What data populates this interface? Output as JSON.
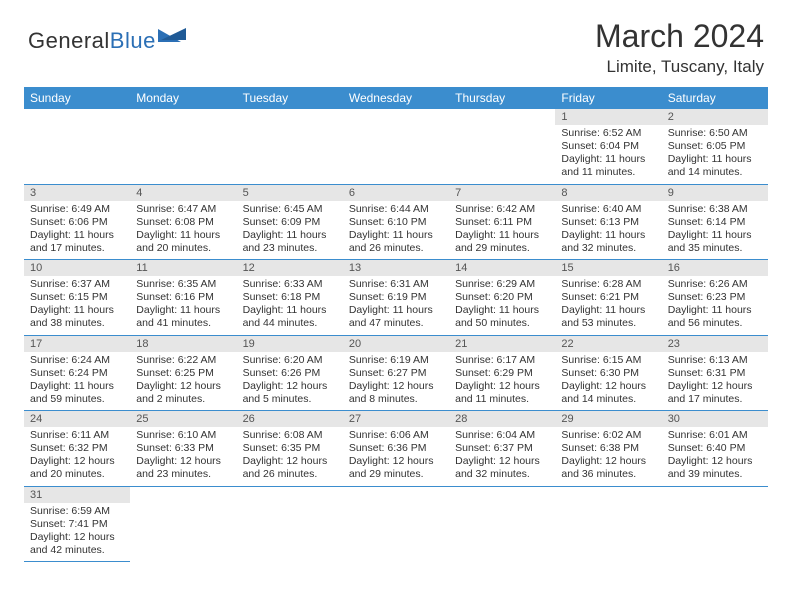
{
  "brand": {
    "part1": "General",
    "part2": "Blue"
  },
  "title": "March 2024",
  "location": "Limite, Tuscany, Italy",
  "header_bg": "#3b8dce",
  "daynum_bg": "#e6e6e6",
  "border_color": "#3b8dce",
  "week_days": [
    "Sunday",
    "Monday",
    "Tuesday",
    "Wednesday",
    "Thursday",
    "Friday",
    "Saturday"
  ],
  "weeks": [
    [
      null,
      null,
      null,
      null,
      null,
      {
        "n": "1",
        "sr": "Sunrise: 6:52 AM",
        "ss": "Sunset: 6:04 PM",
        "dl": "Daylight: 11 hours and 11 minutes."
      },
      {
        "n": "2",
        "sr": "Sunrise: 6:50 AM",
        "ss": "Sunset: 6:05 PM",
        "dl": "Daylight: 11 hours and 14 minutes."
      }
    ],
    [
      {
        "n": "3",
        "sr": "Sunrise: 6:49 AM",
        "ss": "Sunset: 6:06 PM",
        "dl": "Daylight: 11 hours and 17 minutes."
      },
      {
        "n": "4",
        "sr": "Sunrise: 6:47 AM",
        "ss": "Sunset: 6:08 PM",
        "dl": "Daylight: 11 hours and 20 minutes."
      },
      {
        "n": "5",
        "sr": "Sunrise: 6:45 AM",
        "ss": "Sunset: 6:09 PM",
        "dl": "Daylight: 11 hours and 23 minutes."
      },
      {
        "n": "6",
        "sr": "Sunrise: 6:44 AM",
        "ss": "Sunset: 6:10 PM",
        "dl": "Daylight: 11 hours and 26 minutes."
      },
      {
        "n": "7",
        "sr": "Sunrise: 6:42 AM",
        "ss": "Sunset: 6:11 PM",
        "dl": "Daylight: 11 hours and 29 minutes."
      },
      {
        "n": "8",
        "sr": "Sunrise: 6:40 AM",
        "ss": "Sunset: 6:13 PM",
        "dl": "Daylight: 11 hours and 32 minutes."
      },
      {
        "n": "9",
        "sr": "Sunrise: 6:38 AM",
        "ss": "Sunset: 6:14 PM",
        "dl": "Daylight: 11 hours and 35 minutes."
      }
    ],
    [
      {
        "n": "10",
        "sr": "Sunrise: 6:37 AM",
        "ss": "Sunset: 6:15 PM",
        "dl": "Daylight: 11 hours and 38 minutes."
      },
      {
        "n": "11",
        "sr": "Sunrise: 6:35 AM",
        "ss": "Sunset: 6:16 PM",
        "dl": "Daylight: 11 hours and 41 minutes."
      },
      {
        "n": "12",
        "sr": "Sunrise: 6:33 AM",
        "ss": "Sunset: 6:18 PM",
        "dl": "Daylight: 11 hours and 44 minutes."
      },
      {
        "n": "13",
        "sr": "Sunrise: 6:31 AM",
        "ss": "Sunset: 6:19 PM",
        "dl": "Daylight: 11 hours and 47 minutes."
      },
      {
        "n": "14",
        "sr": "Sunrise: 6:29 AM",
        "ss": "Sunset: 6:20 PM",
        "dl": "Daylight: 11 hours and 50 minutes."
      },
      {
        "n": "15",
        "sr": "Sunrise: 6:28 AM",
        "ss": "Sunset: 6:21 PM",
        "dl": "Daylight: 11 hours and 53 minutes."
      },
      {
        "n": "16",
        "sr": "Sunrise: 6:26 AM",
        "ss": "Sunset: 6:23 PM",
        "dl": "Daylight: 11 hours and 56 minutes."
      }
    ],
    [
      {
        "n": "17",
        "sr": "Sunrise: 6:24 AM",
        "ss": "Sunset: 6:24 PM",
        "dl": "Daylight: 11 hours and 59 minutes."
      },
      {
        "n": "18",
        "sr": "Sunrise: 6:22 AM",
        "ss": "Sunset: 6:25 PM",
        "dl": "Daylight: 12 hours and 2 minutes."
      },
      {
        "n": "19",
        "sr": "Sunrise: 6:20 AM",
        "ss": "Sunset: 6:26 PM",
        "dl": "Daylight: 12 hours and 5 minutes."
      },
      {
        "n": "20",
        "sr": "Sunrise: 6:19 AM",
        "ss": "Sunset: 6:27 PM",
        "dl": "Daylight: 12 hours and 8 minutes."
      },
      {
        "n": "21",
        "sr": "Sunrise: 6:17 AM",
        "ss": "Sunset: 6:29 PM",
        "dl": "Daylight: 12 hours and 11 minutes."
      },
      {
        "n": "22",
        "sr": "Sunrise: 6:15 AM",
        "ss": "Sunset: 6:30 PM",
        "dl": "Daylight: 12 hours and 14 minutes."
      },
      {
        "n": "23",
        "sr": "Sunrise: 6:13 AM",
        "ss": "Sunset: 6:31 PM",
        "dl": "Daylight: 12 hours and 17 minutes."
      }
    ],
    [
      {
        "n": "24",
        "sr": "Sunrise: 6:11 AM",
        "ss": "Sunset: 6:32 PM",
        "dl": "Daylight: 12 hours and 20 minutes."
      },
      {
        "n": "25",
        "sr": "Sunrise: 6:10 AM",
        "ss": "Sunset: 6:33 PM",
        "dl": "Daylight: 12 hours and 23 minutes."
      },
      {
        "n": "26",
        "sr": "Sunrise: 6:08 AM",
        "ss": "Sunset: 6:35 PM",
        "dl": "Daylight: 12 hours and 26 minutes."
      },
      {
        "n": "27",
        "sr": "Sunrise: 6:06 AM",
        "ss": "Sunset: 6:36 PM",
        "dl": "Daylight: 12 hours and 29 minutes."
      },
      {
        "n": "28",
        "sr": "Sunrise: 6:04 AM",
        "ss": "Sunset: 6:37 PM",
        "dl": "Daylight: 12 hours and 32 minutes."
      },
      {
        "n": "29",
        "sr": "Sunrise: 6:02 AM",
        "ss": "Sunset: 6:38 PM",
        "dl": "Daylight: 12 hours and 36 minutes."
      },
      {
        "n": "30",
        "sr": "Sunrise: 6:01 AM",
        "ss": "Sunset: 6:40 PM",
        "dl": "Daylight: 12 hours and 39 minutes."
      }
    ],
    [
      {
        "n": "31",
        "sr": "Sunrise: 6:59 AM",
        "ss": "Sunset: 7:41 PM",
        "dl": "Daylight: 12 hours and 42 minutes."
      },
      null,
      null,
      null,
      null,
      null,
      null
    ]
  ]
}
